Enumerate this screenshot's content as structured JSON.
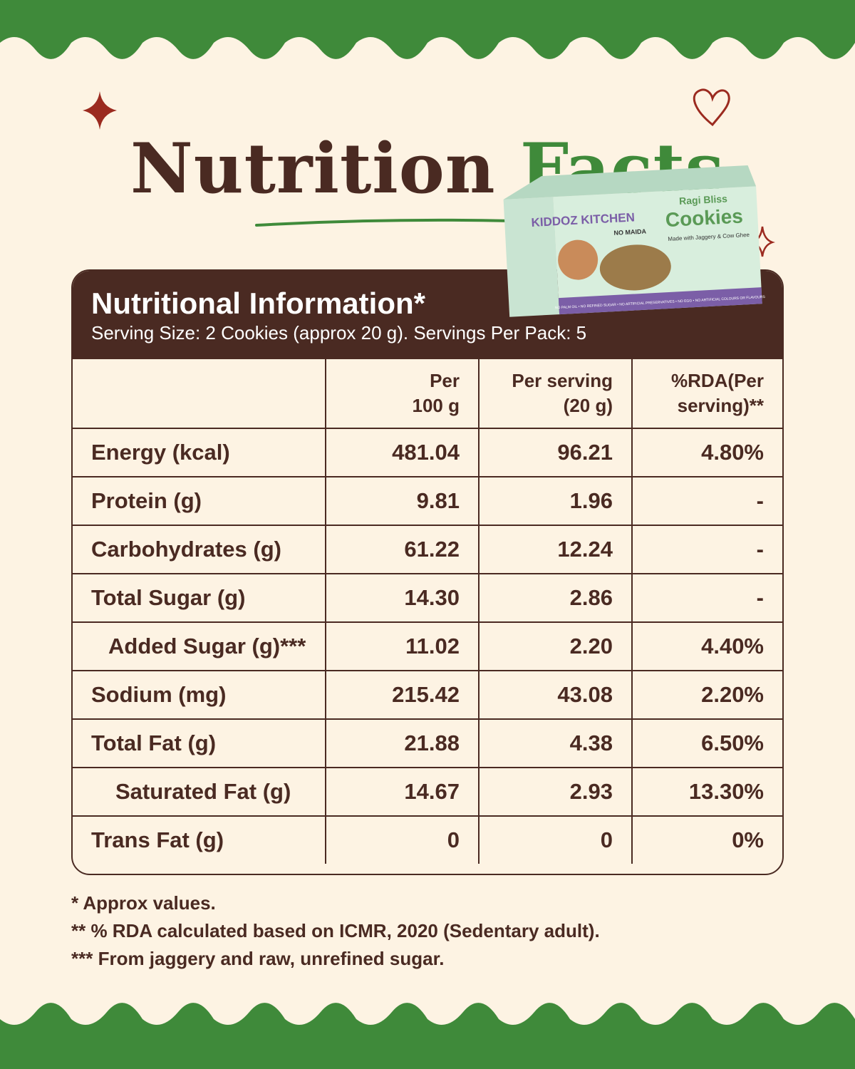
{
  "header": {
    "title_part1": "Nutrition",
    "title_part2": "Facts"
  },
  "product": {
    "brand": "KIDDOZ KITCHEN",
    "name_top": "Ragi Bliss",
    "name": "Cookies",
    "tagline": "Made with Jaggery & Cow Ghee",
    "badge": "NO MAIDA",
    "claims": "NO PALM OIL • NO REFINED SUGAR • NO ARTIFICIAL PRESERVATIVES • NO EGG • NO ARTIFICIAL COLOURS OR FLAVOURS"
  },
  "table": {
    "title": "Nutritional Information*",
    "subtitle": "Serving Size: 2 Cookies (approx 20 g). Servings Per Pack: 5",
    "columns": [
      "Per\n100 g",
      "Per serving\n(20 g)",
      "%RDA(Per\nserving)**"
    ],
    "rows": [
      [
        "Energy (kcal)",
        "481.04",
        "96.21",
        "4.80%"
      ],
      [
        "Protein (g)",
        "9.81",
        "1.96",
        "-"
      ],
      [
        "Carbohydrates (g)",
        "61.22",
        "12.24",
        "-"
      ],
      [
        "Total Sugar (g)",
        "14.30",
        "2.86",
        "-"
      ],
      [
        "Added Sugar (g)***",
        "11.02",
        "2.20",
        "4.40%"
      ],
      [
        "Sodium (mg)",
        "215.42",
        "43.08",
        "2.20%"
      ],
      [
        "Total Fat (g)",
        "21.88",
        "4.38",
        "6.50%"
      ],
      [
        "Saturated Fat (g)",
        "14.67",
        "2.93",
        "13.30%"
      ],
      [
        "Trans Fat (g)",
        "0",
        "0",
        "0%"
      ]
    ]
  },
  "footnotes": [
    "* Approx values.",
    "** % RDA calculated based on ICMR, 2020 (Sedentary adult).",
    "*** From jaggery and raw, unrefined sugar."
  ]
}
